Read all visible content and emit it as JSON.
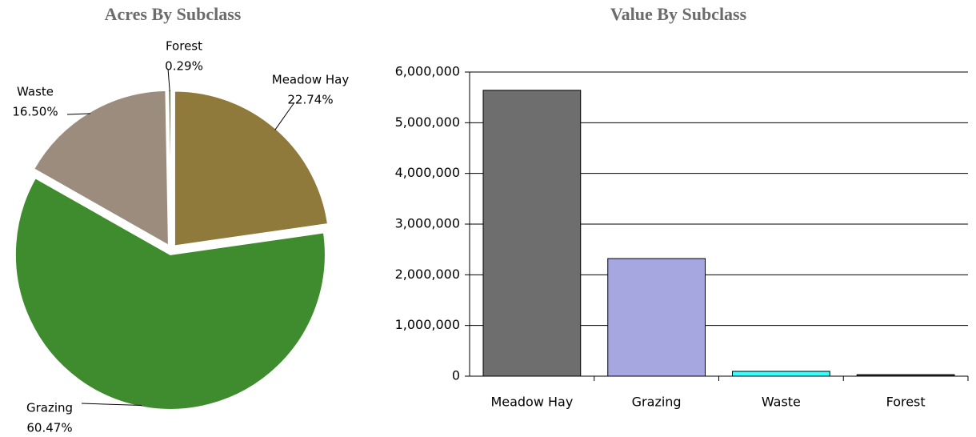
{
  "chart_data": [
    {
      "type": "pie",
      "title": "Acres By Subclass",
      "categories": [
        "Meadow Hay",
        "Grazing",
        "Waste",
        "Forest"
      ],
      "values": [
        22.74,
        60.47,
        16.5,
        0.29
      ],
      "value_labels": [
        "22.74%",
        "60.47%",
        "16.50%",
        "0.29%"
      ],
      "colors": [
        "#8f7a3c",
        "#3f8c2e",
        "#9b8c7e",
        "#4a5a3a"
      ]
    },
    {
      "type": "bar",
      "title": "Value By Subclass",
      "categories": [
        "Meadow Hay",
        "Grazing",
        "Waste",
        "Forest"
      ],
      "values": [
        5640000,
        2320000,
        95000,
        30000
      ],
      "colors": [
        "#6e6e6e",
        "#a6a6e0",
        "#33ffff",
        "#333333"
      ],
      "ylim": [
        0,
        6000000
      ],
      "yticks": [
        0,
        {
          "value": 1000000,
          "label": "1,000,000"
        },
        {
          "value": 2000000,
          "label": "2,000,000"
        },
        {
          "value": 3000000,
          "label": "3,000,000"
        },
        {
          "value": 4000000,
          "label": "4,000,000"
        },
        {
          "value": 5000000,
          "label": "5,000,000"
        },
        {
          "value": 6000000,
          "label": "6,000,000"
        }
      ],
      "grid": true
    }
  ]
}
